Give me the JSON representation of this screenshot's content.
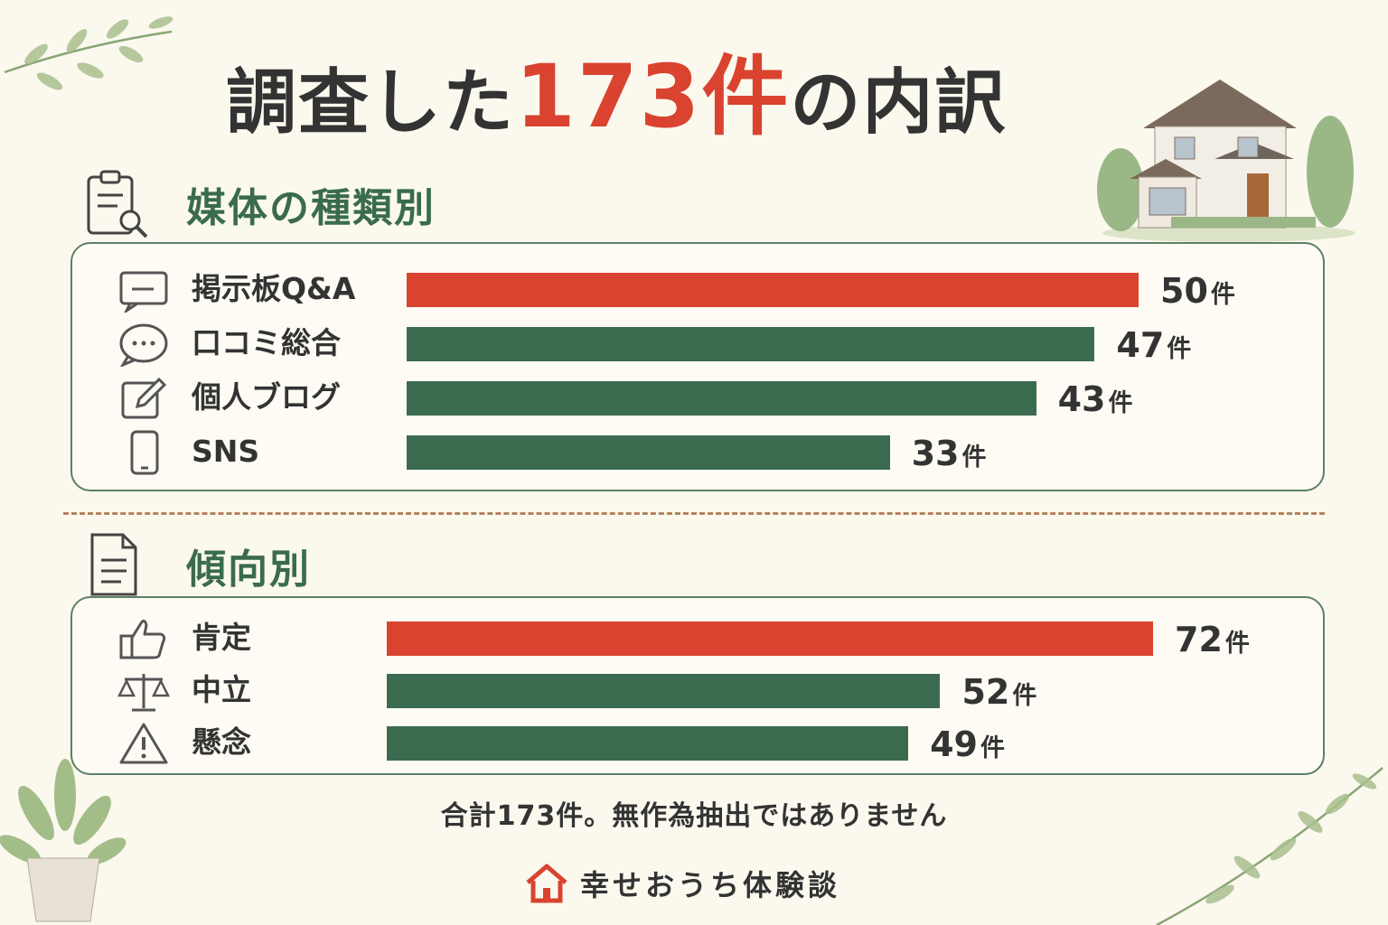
{
  "title": {
    "prefix": "調査した",
    "highlight": "173件",
    "suffix": "の内訳"
  },
  "colors": {
    "accent": "#d9432f",
    "bar": "#3b6b4f",
    "heading": "#3a6b4e",
    "border": "#5d8065"
  },
  "chart_data": [
    {
      "type": "bar",
      "title": "媒体の種類別",
      "unit": "件",
      "categories": [
        "掲示板Q&A",
        "口コミ総合",
        "個人ブログ",
        "SNS"
      ],
      "icons": [
        "board-icon",
        "chat-bubble-icon",
        "pencil-edit-icon",
        "smartphone-icon"
      ],
      "values": [
        50,
        47,
        43,
        33
      ],
      "highlight_index": 0
    },
    {
      "type": "bar",
      "title": "傾向別",
      "unit": "件",
      "categories": [
        "肯定",
        "中立",
        "懸念"
      ],
      "icons": [
        "thumbs-up-icon",
        "scale-icon",
        "warning-icon"
      ],
      "values": [
        72,
        52,
        49
      ],
      "highlight_index": 0
    }
  ],
  "note": "合計173件。無作為抽出ではありません",
  "brand": {
    "name": "幸せおうち体験談",
    "icon": "house-icon"
  }
}
